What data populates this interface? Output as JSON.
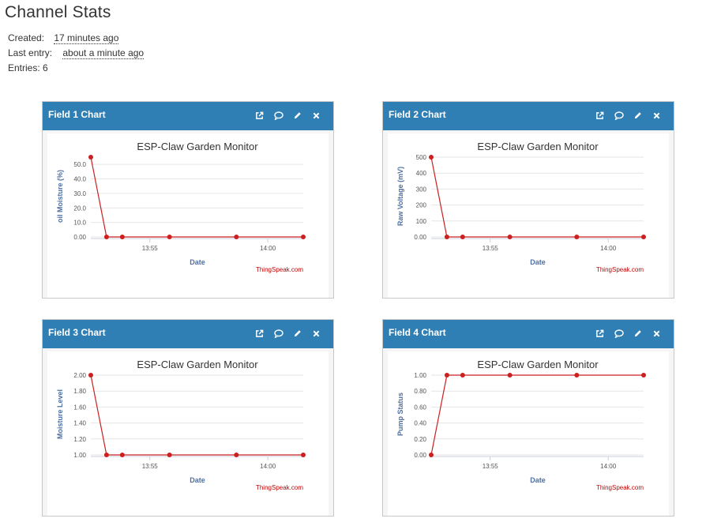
{
  "page": {
    "title": "Channel Stats",
    "created_label": "Created:",
    "created_value": "17 minutes ago",
    "last_entry_label": "Last entry:",
    "last_entry_value": "about a minute ago",
    "entries_text": "Entries: 6"
  },
  "colors": {
    "header": "#2f7fb5",
    "line": "#cc1f1f",
    "credit": "#c00000",
    "axis_title": "#4d6fa1"
  },
  "icons": [
    "external-link-icon",
    "comment-icon",
    "pencil-icon",
    "close-icon"
  ],
  "panels": [
    {
      "title": "Field 1 Chart"
    },
    {
      "title": "Field 2 Chart"
    },
    {
      "title": "Field 3 Chart"
    },
    {
      "title": "Field 4 Chart"
    }
  ],
  "chart_data": [
    {
      "type": "line",
      "title": "ESP-Claw Garden Monitor",
      "xlabel": "Date",
      "ylabel": "oil Moisture (%)",
      "credit": "ThingSpeak.com",
      "x_tick_labels": [
        "13:55",
        "14:00"
      ],
      "x": [
        "13:52:30",
        "13:53:10",
        "13:53:50",
        "13:55:50",
        "13:58:40",
        "14:01:30"
      ],
      "values": [
        55,
        0,
        0,
        0,
        0,
        0
      ],
      "y_ticks": [
        "0.00",
        "10.0",
        "20.0",
        "30.0",
        "40.0",
        "50.0"
      ],
      "ylim": [
        0,
        55
      ]
    },
    {
      "type": "line",
      "title": "ESP-Claw Garden Monitor",
      "xlabel": "Date",
      "ylabel": "Raw Voltage (mV)",
      "credit": "ThingSpeak.com",
      "x_tick_labels": [
        "13:55",
        "14:00"
      ],
      "x": [
        "13:52:30",
        "13:53:10",
        "13:53:50",
        "13:55:50",
        "13:58:40",
        "14:01:30"
      ],
      "values": [
        500,
        0,
        0,
        0,
        0,
        0
      ],
      "y_ticks": [
        "0.00",
        "100",
        "200",
        "300",
        "400",
        "500"
      ],
      "ylim": [
        0,
        500
      ]
    },
    {
      "type": "line",
      "title": "ESP-Claw Garden Monitor",
      "xlabel": "Date",
      "ylabel": "Moisture Level",
      "credit": "ThingSpeak.com",
      "x_tick_labels": [
        "13:55",
        "14:00"
      ],
      "x": [
        "13:52:30",
        "13:53:10",
        "13:53:50",
        "13:55:50",
        "13:58:40",
        "14:01:30"
      ],
      "values": [
        2,
        1,
        1,
        1,
        1,
        1
      ],
      "y_ticks": [
        "1.00",
        "1.20",
        "1.40",
        "1.60",
        "1.80",
        "2.00"
      ],
      "ylim": [
        1,
        2
      ]
    },
    {
      "type": "line",
      "title": "ESP-Claw Garden Monitor",
      "xlabel": "Date",
      "ylabel": "Pump Status",
      "credit": "ThingSpeak.com",
      "x_tick_labels": [
        "13:55",
        "14:00"
      ],
      "x": [
        "13:52:30",
        "13:53:10",
        "13:53:50",
        "13:55:50",
        "13:58:40",
        "14:01:30"
      ],
      "values": [
        0,
        1,
        1,
        1,
        1,
        1
      ],
      "y_ticks": [
        "0.00",
        "0.20",
        "0.40",
        "0.60",
        "0.80",
        "1.00"
      ],
      "ylim": [
        0,
        1
      ]
    }
  ]
}
